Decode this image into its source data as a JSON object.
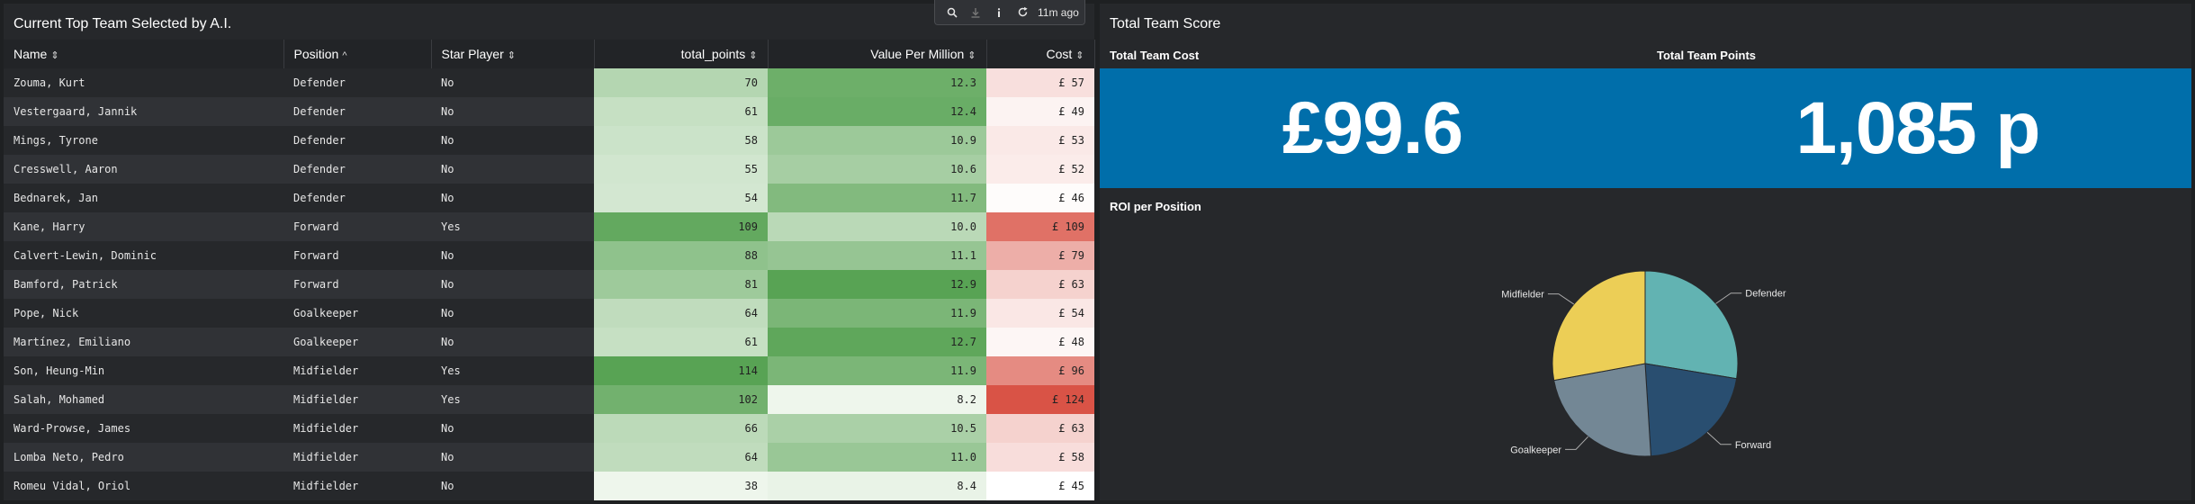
{
  "left_panel": {
    "title": "Current Top Team Selected by A.I.",
    "toolbar": {
      "time": "11m ago",
      "icons": [
        "search-icon",
        "download-icon",
        "info-icon",
        "refresh-icon"
      ]
    },
    "columns": [
      {
        "label": "Name",
        "sort": "⇕"
      },
      {
        "label": "Position",
        "sort": "^"
      },
      {
        "label": "Star Player",
        "sort": "⇕"
      },
      {
        "label": "total_points",
        "sort": "⇕"
      },
      {
        "label": "Value Per Million",
        "sort": "⇕"
      },
      {
        "label": "Cost",
        "sort": "⇕"
      }
    ],
    "rows": [
      {
        "name": "Zouma, Kurt",
        "position": "Defender",
        "star": "No",
        "points": "70",
        "vpm": "12.3",
        "cost": "£ 57"
      },
      {
        "name": "Vestergaard, Jannik",
        "position": "Defender",
        "star": "No",
        "points": "61",
        "vpm": "12.4",
        "cost": "£ 49"
      },
      {
        "name": "Mings, Tyrone",
        "position": "Defender",
        "star": "No",
        "points": "58",
        "vpm": "10.9",
        "cost": "£ 53"
      },
      {
        "name": "Cresswell, Aaron",
        "position": "Defender",
        "star": "No",
        "points": "55",
        "vpm": "10.6",
        "cost": "£ 52"
      },
      {
        "name": "Bednarek, Jan",
        "position": "Defender",
        "star": "No",
        "points": "54",
        "vpm": "11.7",
        "cost": "£ 46"
      },
      {
        "name": "Kane, Harry",
        "position": "Forward",
        "star": "Yes",
        "points": "109",
        "vpm": "10.0",
        "cost": "£ 109"
      },
      {
        "name": "Calvert-Lewin, Dominic",
        "position": "Forward",
        "star": "No",
        "points": "88",
        "vpm": "11.1",
        "cost": "£ 79"
      },
      {
        "name": "Bamford, Patrick",
        "position": "Forward",
        "star": "No",
        "points": "81",
        "vpm": "12.9",
        "cost": "£ 63"
      },
      {
        "name": "Pope, Nick",
        "position": "Goalkeeper",
        "star": "No",
        "points": "64",
        "vpm": "11.9",
        "cost": "£ 54"
      },
      {
        "name": "Martínez, Emiliano",
        "position": "Goalkeeper",
        "star": "No",
        "points": "61",
        "vpm": "12.7",
        "cost": "£ 48"
      },
      {
        "name": "Son, Heung-Min",
        "position": "Midfielder",
        "star": "Yes",
        "points": "114",
        "vpm": "11.9",
        "cost": "£ 96"
      },
      {
        "name": "Salah, Mohamed",
        "position": "Midfielder",
        "star": "Yes",
        "points": "102",
        "vpm": "8.2",
        "cost": "£ 124"
      },
      {
        "name": "Ward-Prowse, James",
        "position": "Midfielder",
        "star": "No",
        "points": "66",
        "vpm": "10.5",
        "cost": "£ 63"
      },
      {
        "name": "Lomba Neto, Pedro",
        "position": "Midfielder",
        "star": "No",
        "points": "64",
        "vpm": "11.0",
        "cost": "£ 58"
      },
      {
        "name": "Romeu Vidal, Oriol",
        "position": "Midfielder",
        "star": "No",
        "points": "38",
        "vpm": "8.4",
        "cost": "£ 45"
      }
    ]
  },
  "right_panel": {
    "title": "Total Team Score",
    "cost_label": "Total Team Cost",
    "cost_value": "£99.6",
    "points_label": "Total Team Points",
    "points_value": "1,085 p",
    "band_color": "#006eaa",
    "roi_title": "ROI per Position"
  },
  "chart_data": {
    "type": "pie",
    "title": "ROI per Position",
    "slices": [
      {
        "label": "Defender",
        "value": 0.276,
        "color": "#62b3b2"
      },
      {
        "label": "Forward",
        "value": 0.214,
        "color": "#294e70"
      },
      {
        "label": "Goalkeeper",
        "value": 0.231,
        "color": "#738795"
      },
      {
        "label": "Midfielder",
        "value": 0.279,
        "color": "#ecce56"
      }
    ]
  }
}
